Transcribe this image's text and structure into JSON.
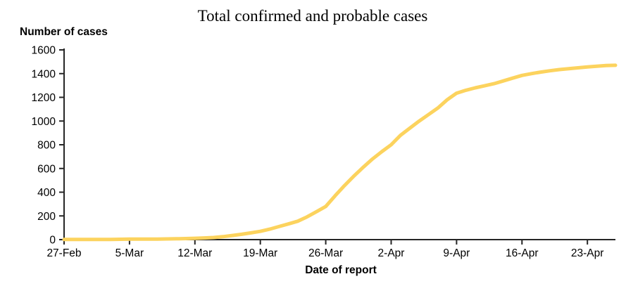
{
  "page": {
    "background": "#FFFFFF"
  },
  "header": {
    "title": "Total confirmed and probable cases"
  },
  "chart_data": {
    "type": "line",
    "title": "Total confirmed and probable cases",
    "xlabel": "Date of report",
    "ylabel": "Number of cases",
    "ylim": [
      0,
      1600
    ],
    "y_ticks": [
      0,
      200,
      400,
      600,
      800,
      1000,
      1200,
      1400,
      1600
    ],
    "x_tick_labels": [
      "27-Feb",
      "5-Mar",
      "12-Mar",
      "19-Mar",
      "26-Mar",
      "2-Apr",
      "9-Apr",
      "16-Apr",
      "23-Apr"
    ],
    "x_tick_day_index": [
      0,
      7,
      14,
      21,
      28,
      35,
      42,
      49,
      56
    ],
    "grid": false,
    "legend": "none",
    "line_color": "#FCD35E",
    "axis_color": "#262626",
    "text_color": "#000000",
    "series": [
      {
        "name": "Total confirmed and probable cases",
        "x": [
          "27-Feb",
          "28-Feb",
          "29-Feb",
          "1-Mar",
          "2-Mar",
          "3-Mar",
          "4-Mar",
          "5-Mar",
          "6-Mar",
          "7-Mar",
          "8-Mar",
          "9-Mar",
          "10-Mar",
          "11-Mar",
          "12-Mar",
          "13-Mar",
          "14-Mar",
          "15-Mar",
          "16-Mar",
          "17-Mar",
          "18-Mar",
          "19-Mar",
          "20-Mar",
          "21-Mar",
          "22-Mar",
          "23-Mar",
          "24-Mar",
          "25-Mar",
          "26-Mar",
          "27-Mar",
          "28-Mar",
          "29-Mar",
          "30-Mar",
          "31-Mar",
          "1-Apr",
          "2-Apr",
          "3-Apr",
          "4-Apr",
          "5-Apr",
          "6-Apr",
          "7-Apr",
          "8-Apr",
          "9-Apr",
          "10-Apr",
          "11-Apr",
          "12-Apr",
          "13-Apr",
          "14-Apr",
          "15-Apr",
          "16-Apr",
          "17-Apr",
          "18-Apr",
          "19-Apr",
          "20-Apr",
          "21-Apr",
          "22-Apr",
          "23-Apr",
          "24-Apr",
          "25-Apr",
          "26-Apr"
        ],
        "values": [
          1,
          1,
          1,
          2,
          2,
          2,
          3,
          4,
          4,
          5,
          5,
          6,
          7,
          9,
          11,
          14,
          18,
          25,
          35,
          45,
          57,
          70,
          88,
          110,
          132,
          155,
          192,
          235,
          280,
          370,
          455,
          535,
          610,
          680,
          742,
          800,
          880,
          940,
          1000,
          1055,
          1110,
          1180,
          1235,
          1260,
          1280,
          1297,
          1315,
          1338,
          1362,
          1385,
          1400,
          1413,
          1424,
          1434,
          1442,
          1449,
          1456,
          1462,
          1468,
          1470
        ]
      }
    ]
  }
}
